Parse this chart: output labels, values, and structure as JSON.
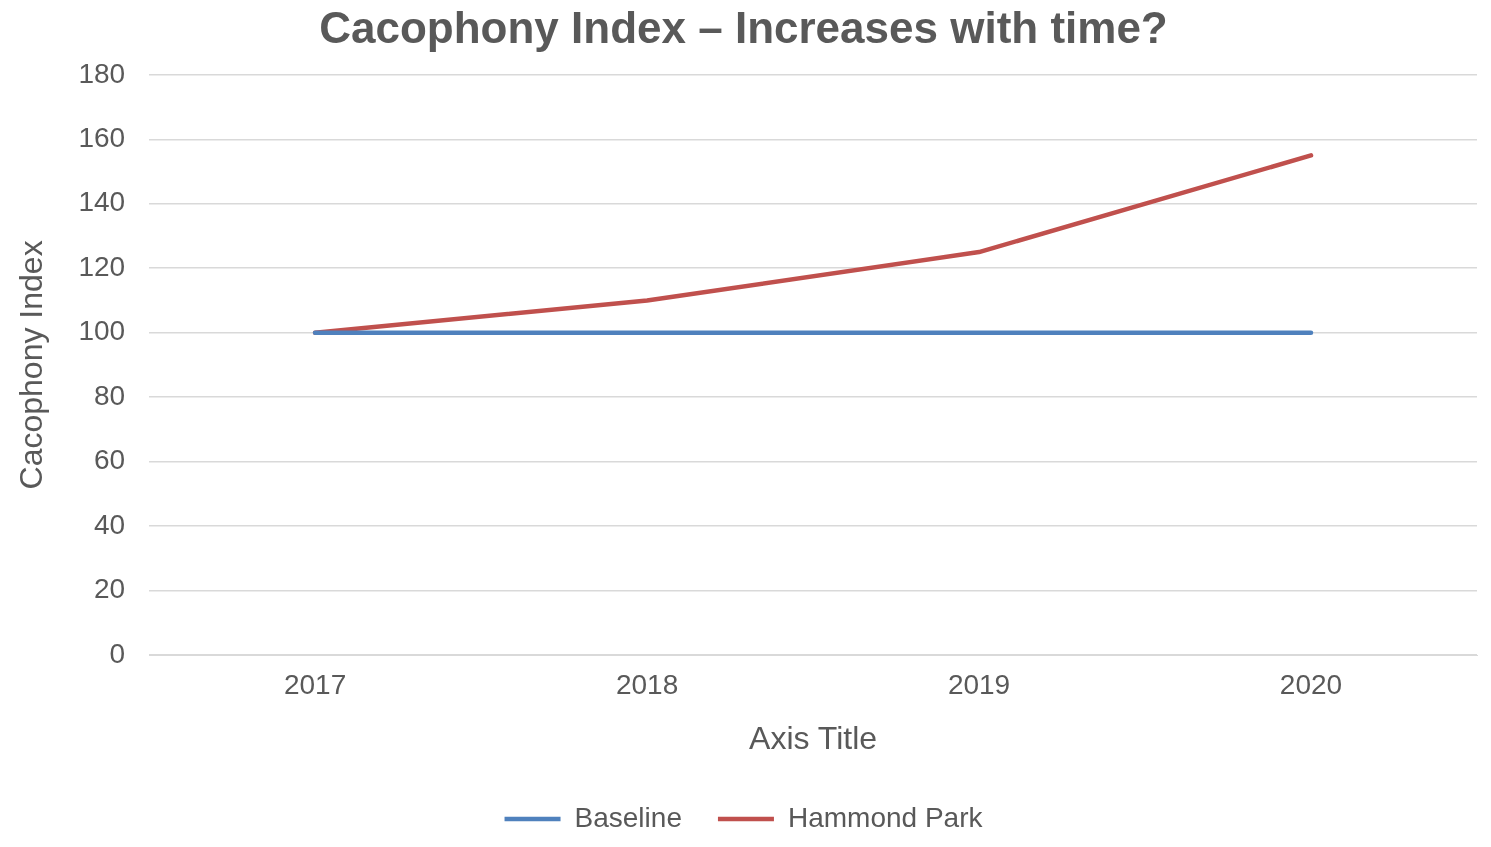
{
  "chart_data": {
    "type": "line",
    "title": "Cacophony Index – Increases with time?",
    "xlabel": "Axis Title",
    "ylabel": "Cacophony Index",
    "categories": [
      "2017",
      "2018",
      "2019",
      "2020"
    ],
    "series": [
      {
        "name": "Baseline",
        "color": "#4f81bd",
        "values": [
          100,
          100,
          100,
          100
        ]
      },
      {
        "name": "Hammond Park",
        "color": "#c0504d",
        "values": [
          100,
          110,
          125,
          155
        ]
      }
    ],
    "ylim": [
      0,
      180
    ],
    "yticks": [
      0,
      20,
      40,
      60,
      80,
      100,
      120,
      140,
      160,
      180
    ],
    "grid": "y",
    "legend": "bottom",
    "marker": "none",
    "line_style": "solid"
  }
}
